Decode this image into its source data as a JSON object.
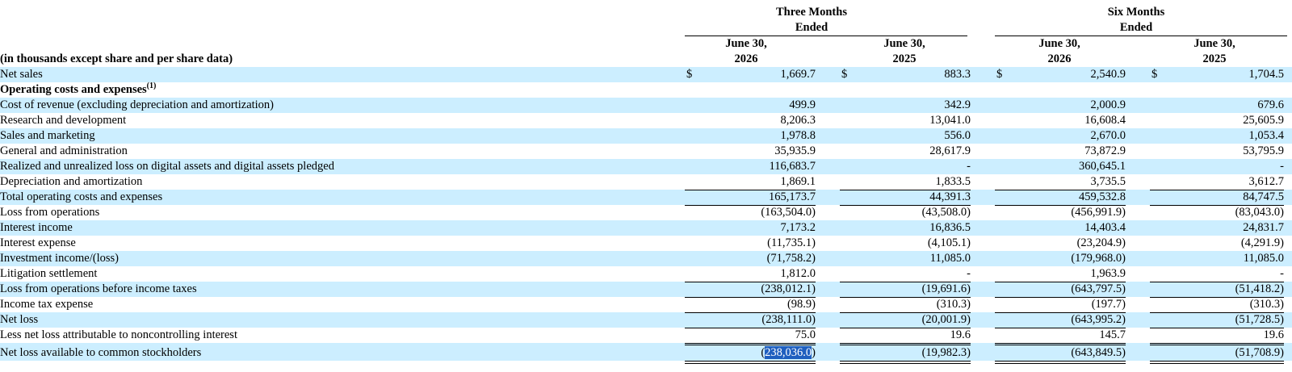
{
  "header": {
    "group1": [
      "Three Months",
      "Ended"
    ],
    "group2": [
      "Six Months",
      "Ended"
    ],
    "columns": [
      [
        "June 30,",
        "2026"
      ],
      [
        "June 30,",
        "2025"
      ],
      [
        "June 30,",
        "2026"
      ],
      [
        "June 30,",
        "2025"
      ]
    ],
    "units_note": "(in thousands except share and per share data)"
  },
  "currency_symbol": "$",
  "rows": [
    {
      "label": "Net sales",
      "values": [
        "1,669.7",
        "883.3",
        "2,540.9",
        "1,704.5"
      ],
      "dollar": true
    },
    {
      "label": "Operating costs and expenses",
      "sup": "(1)",
      "section": true,
      "values": [
        "",
        "",
        "",
        ""
      ]
    },
    {
      "label": "Cost of revenue (excluding depreciation and amortization)",
      "values": [
        "499.9",
        "342.9",
        "2,000.9",
        "679.6"
      ]
    },
    {
      "label": "Research and development",
      "values": [
        "8,206.3",
        "13,041.0",
        "16,608.4",
        "25,605.9"
      ]
    },
    {
      "label": "Sales and marketing",
      "values": [
        "1,978.8",
        "556.0",
        "2,670.0",
        "1,053.4"
      ]
    },
    {
      "label": "General and administration",
      "values": [
        "35,935.9",
        "28,617.9",
        "73,872.9",
        "53,795.9"
      ]
    },
    {
      "label": "Realized and unrealized loss on digital assets and digital assets pledged",
      "values": [
        "116,683.7",
        "-",
        "360,645.1",
        "-"
      ]
    },
    {
      "label": "Depreciation and amortization",
      "values": [
        "1,869.1",
        "1,833.5",
        "3,735.5",
        "3,612.7"
      ]
    },
    {
      "label": "Total operating costs and expenses",
      "values": [
        "165,173.7",
        "44,391.3",
        "459,532.8",
        "84,747.5"
      ]
    },
    {
      "label": "Loss from operations",
      "values": [
        "(163,504.0)",
        "(43,508.0)",
        "(456,991.9)",
        "(83,043.0)"
      ]
    },
    {
      "label": "Interest income",
      "values": [
        "7,173.2",
        "16,836.5",
        "14,403.4",
        "24,831.7"
      ]
    },
    {
      "label": "Interest expense",
      "values": [
        "(11,735.1)",
        "(4,105.1)",
        "(23,204.9)",
        "(4,291.9)"
      ]
    },
    {
      "label": "Investment income/(loss)",
      "values": [
        "(71,758.2)",
        "11,085.0",
        "(179,968.0)",
        "11,085.0"
      ]
    },
    {
      "label": "Litigation settlement",
      "values": [
        "1,812.0",
        "-",
        "1,963.9",
        "-"
      ]
    },
    {
      "label": "Loss from operations before income taxes",
      "values": [
        "(238,012.1)",
        "(19,691.6)",
        "(643,797.5)",
        "(51,418.2)"
      ]
    },
    {
      "label": "Income tax expense",
      "values": [
        "(98.9)",
        "(310.3)",
        "(197.7)",
        "(310.3)"
      ]
    },
    {
      "label": "Net loss",
      "values": [
        "(238,111.0)",
        "(20,001.9)",
        "(643,995.2)",
        "(51,728.5)"
      ]
    },
    {
      "label": "Less net loss attributable to noncontrolling interest",
      "values": [
        "75.0",
        "19.6",
        "145.7",
        "19.6"
      ]
    },
    {
      "label": "Net loss available to common stockholders",
      "values": [
        "(238,036.0)",
        "(19,982.3)",
        "(643,849.5)",
        "(51,708.9)"
      ]
    }
  ],
  "selection": {
    "row": 18,
    "col": 0,
    "text": "238,036.0"
  },
  "colors": {
    "row_shade": "#cceeff",
    "selection": "#1f5fbf"
  }
}
